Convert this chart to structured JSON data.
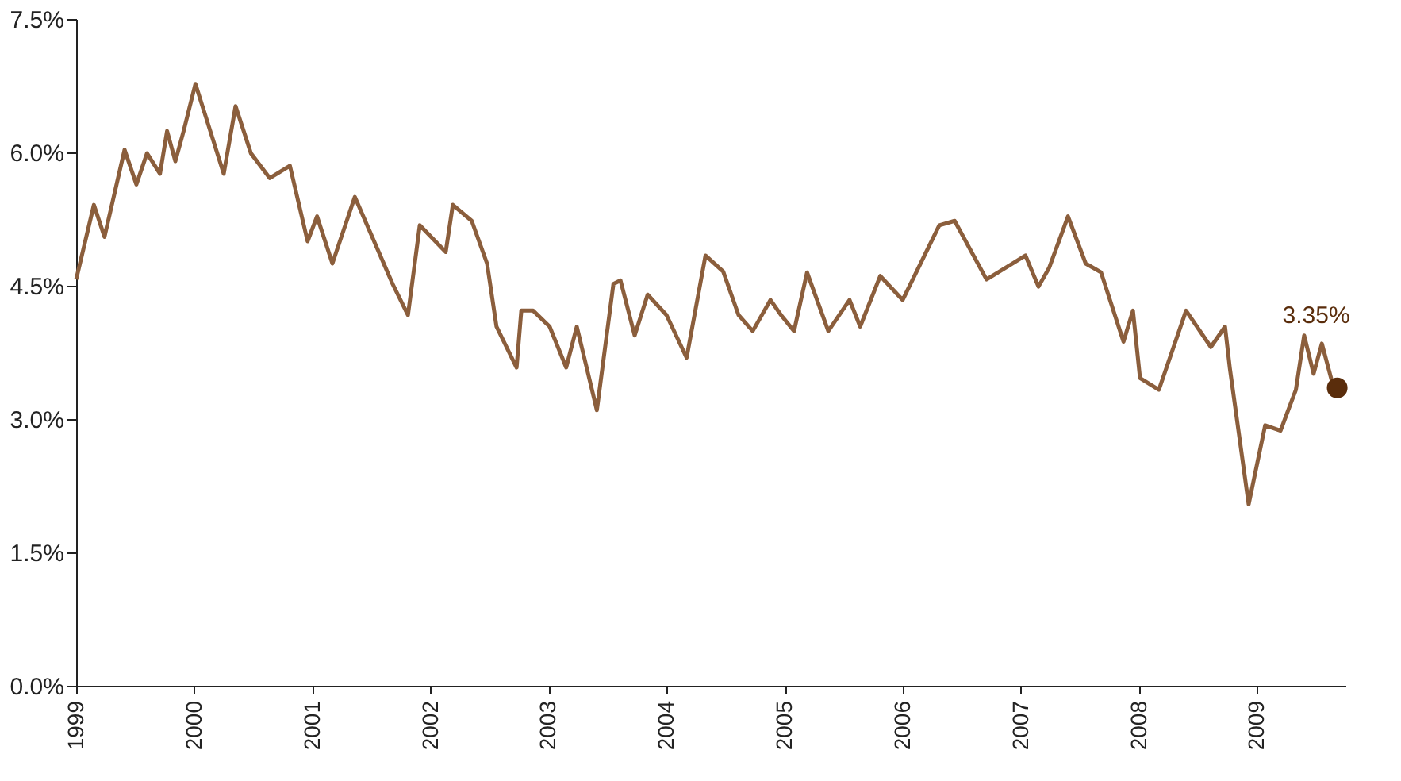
{
  "chart_data": {
    "type": "line",
    "x": [
      1999.0,
      1999.15,
      1999.24,
      1999.41,
      1999.51,
      1999.6,
      1999.71,
      1999.77,
      1999.84,
      1999.91,
      2000.01,
      2000.25,
      2000.35,
      2000.48,
      2000.64,
      2000.81,
      2000.96,
      2001.04,
      2001.17,
      2001.36,
      2001.68,
      2001.81,
      2001.91,
      2002.13,
      2002.19,
      2002.35,
      2002.48,
      2002.56,
      2002.73,
      2002.77,
      2002.87,
      2003.01,
      2003.15,
      2003.24,
      2003.41,
      2003.55,
      2003.61,
      2003.73,
      2003.84,
      2004.0,
      2004.17,
      2004.33,
      2004.48,
      2004.61,
      2004.73,
      2004.88,
      2004.97,
      2005.08,
      2005.19,
      2005.37,
      2005.55,
      2005.64,
      2005.81,
      2006.0,
      2006.31,
      2006.44,
      2006.71,
      2007.04,
      2007.15,
      2007.24,
      2007.4,
      2007.55,
      2007.68,
      2007.87,
      2007.95,
      2008.01,
      2008.17,
      2008.4,
      2008.61,
      2008.73,
      2008.77,
      2008.93,
      2009.07,
      2009.2,
      2009.33,
      2009.4,
      2009.48,
      2009.55,
      2009.64,
      2009.68
    ],
    "series": [
      {
        "color": "#8b5e3c",
        "values": [
          4.57,
          5.41,
          5.05,
          6.03,
          5.64,
          5.99,
          5.76,
          6.24,
          5.9,
          6.24,
          6.77,
          5.76,
          6.52,
          5.99,
          5.71,
          5.85,
          5.0,
          5.28,
          4.75,
          5.5,
          4.52,
          4.17,
          5.18,
          4.88,
          5.41,
          5.23,
          4.75,
          4.04,
          3.58,
          4.22,
          4.22,
          4.04,
          3.58,
          4.04,
          3.1,
          4.52,
          4.56,
          3.94,
          4.4,
          4.17,
          3.69,
          4.84,
          4.66,
          4.17,
          3.99,
          4.34,
          4.17,
          3.99,
          4.65,
          3.99,
          4.34,
          4.04,
          4.61,
          4.34,
          5.18,
          5.23,
          4.57,
          4.84,
          4.49,
          4.7,
          5.28,
          4.75,
          4.65,
          3.87,
          4.22,
          3.46,
          3.33,
          4.22,
          3.81,
          4.04,
          3.58,
          2.04,
          2.93,
          2.87,
          3.33,
          3.94,
          3.51,
          3.85,
          3.4,
          3.35
        ]
      }
    ],
    "xlim": [
      1999,
      2009.75
    ],
    "xticks": [
      1999,
      2000,
      2001,
      2002,
      2003,
      2004,
      2005,
      2006,
      2007,
      2008,
      2009
    ],
    "ylim": [
      0,
      7.5
    ],
    "yticks": [
      {
        "value": 0,
        "label": "0.0%"
      },
      {
        "value": 1.5,
        "label": "1.5%"
      },
      {
        "value": 3,
        "label": "3.0%"
      },
      {
        "value": 4.5,
        "label": "4.5%"
      },
      {
        "value": 6,
        "label": "6.0%"
      },
      {
        "value": 7.5,
        "label": "7.5%"
      }
    ],
    "annotations": [
      {
        "text": "3.35%",
        "x": 2009.68,
        "y": 3.35
      }
    ],
    "grid": false,
    "marker": "none",
    "line_style": "solid"
  }
}
